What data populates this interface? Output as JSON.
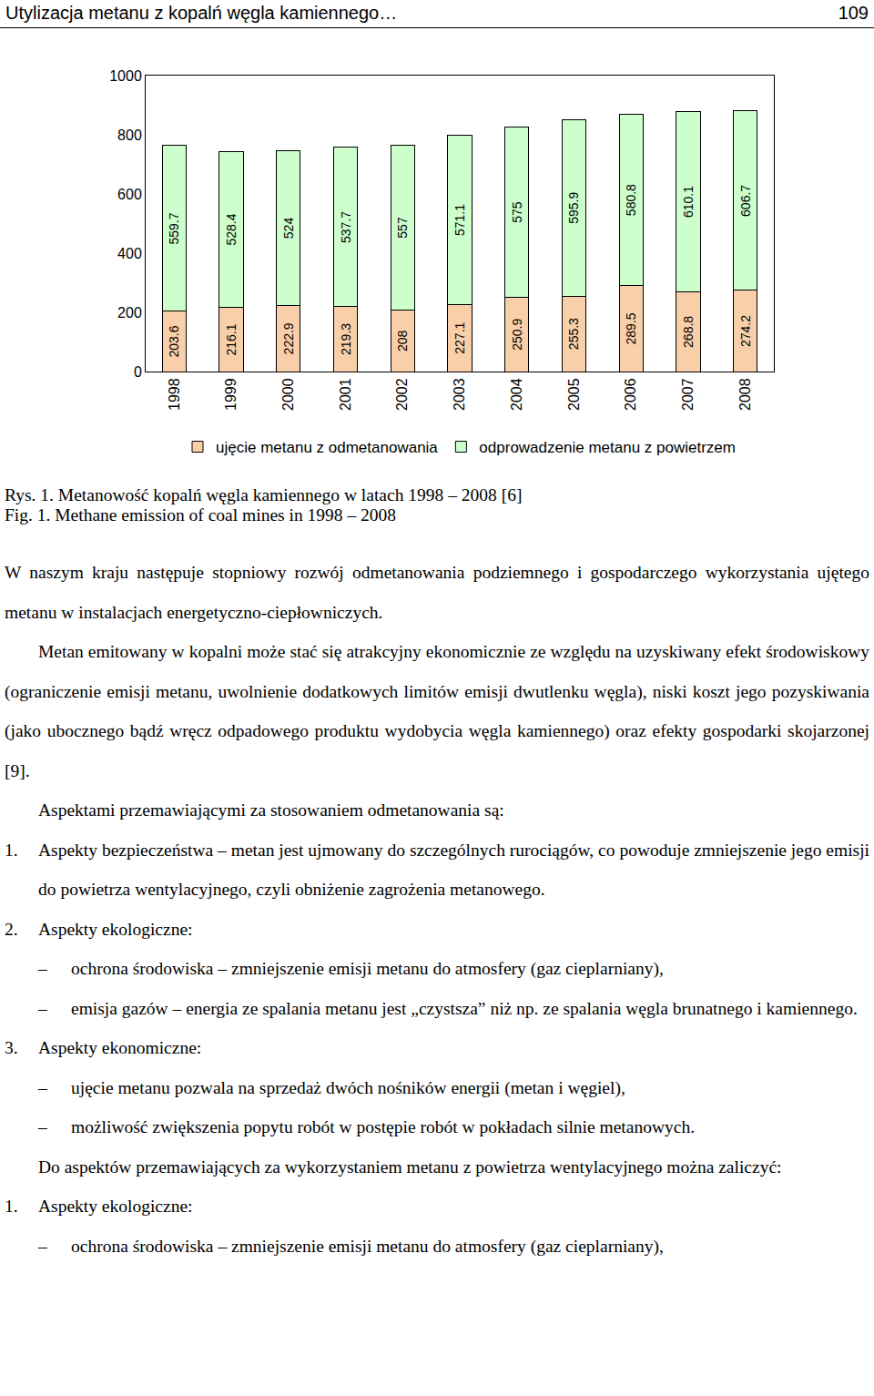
{
  "header": {
    "title": "Utylizacja metanu z kopalń węgla kamiennego…",
    "page": "109"
  },
  "chart_data": {
    "type": "bar",
    "stacked": true,
    "categories": [
      "1998",
      "1999",
      "2000",
      "2001",
      "2002",
      "2003",
      "2004",
      "2005",
      "2006",
      "2007",
      "2008"
    ],
    "series": [
      {
        "name": "ujęcie metanu z odmetanowania",
        "color": "#f9cfa9",
        "values": [
          203.6,
          216.1,
          222.9,
          219.3,
          208,
          227.1,
          250.9,
          255.3,
          289.5,
          268.8,
          274.2
        ]
      },
      {
        "name": "odprowadzenie metanu z powietrzem",
        "color": "#ccffcc",
        "values": [
          559.7,
          528.4,
          524,
          537.7,
          557,
          571.1,
          575,
          595.9,
          580.8,
          610.1,
          606.7
        ]
      }
    ],
    "ylim": [
      0,
      1000
    ],
    "yticks": [
      0,
      200,
      400,
      600,
      800,
      1000
    ],
    "grid": false,
    "legend": "bottom",
    "data_labels": true
  },
  "captions": [
    "Rys. 1. Metanowość kopalń węgla kamiennego w latach 1998 – 2008 [6]",
    "Fig. 1. Methane emission of coal mines in 1998 – 2008"
  ],
  "body": [
    {
      "kind": "paragraph",
      "text": "W naszym kraju następuje stopniowy rozwój odmetanowania podziemnego i gospodarczego wykorzystania ujętego metanu w instalacjach energetyczno-ciepłowniczych."
    },
    {
      "kind": "indented",
      "text": "Metan emitowany w kopalni może stać się atrakcyjny ekonomicznie ze względu na uzyskiwany efekt środowiskowy (ograniczenie emisji metanu, uwolnienie dodatkowych limitów emisji dwutlenku węgla), niski koszt jego pozyskiwania (jako ubocznego bądź wręcz odpadowego produktu wydobycia węgla kamiennego) oraz efekty gospodarki skojarzonej [9]."
    },
    {
      "kind": "indented",
      "text": "Aspektami przemawiającymi za stosowaniem odmetanowania są:"
    },
    {
      "kind": "item",
      "number": "1.",
      "text": "Aspekty bezpieczeństwa – metan jest ujmowany do szczególnych rurociągów, co powoduje zmniejszenie jego emisji do powietrza wentylacyjnego, czyli obniżenie zagrożenia metanowego."
    },
    {
      "kind": "item",
      "number": "2.",
      "text": "Aspekty ekologiczne:"
    },
    {
      "kind": "subitem",
      "marker": "–",
      "text": "ochrona środowiska – zmniejszenie emisji metanu do atmosfery (gaz cieplarniany),"
    },
    {
      "kind": "subitem",
      "marker": "–",
      "text": "emisja gazów – energia ze spalania metanu jest „czystsza” niż np. ze spalania węgla brunatnego i kamiennego."
    },
    {
      "kind": "item",
      "number": "3.",
      "text": "Aspekty ekonomiczne:"
    },
    {
      "kind": "subitem",
      "marker": "–",
      "text": "ujęcie metanu pozwala na sprzedaż dwóch nośników energii (metan i węgiel),"
    },
    {
      "kind": "subitem",
      "marker": "–",
      "text": "możliwość zwiększenia popytu robót w postępie robót w pokładach silnie metanowych."
    },
    {
      "kind": "indented",
      "text": "Do aspektów przemawiających za wykorzystaniem metanu z powietrza wentylacyjnego można zaliczyć:"
    },
    {
      "kind": "item",
      "number": "1.",
      "text": "Aspekty ekologiczne:"
    },
    {
      "kind": "subitem",
      "marker": "–",
      "text": "ochrona środowiska – zmniejszenie emisji metanu do atmosfery (gaz cieplarniany),"
    }
  ]
}
